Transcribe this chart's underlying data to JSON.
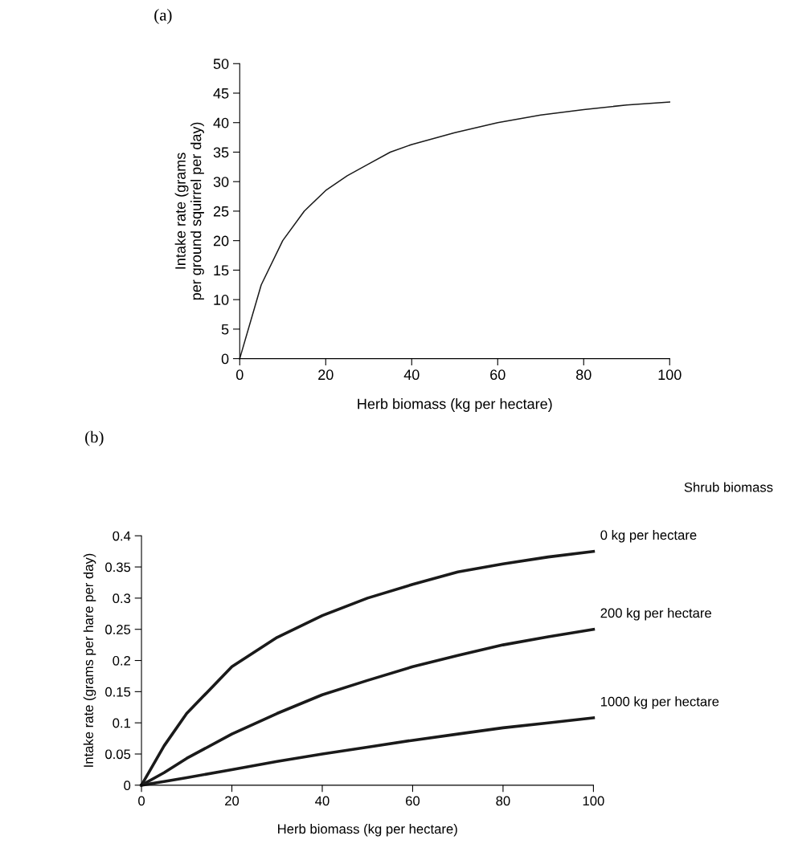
{
  "chart_data": [
    {
      "type": "line",
      "title": "(a)",
      "xlabel": "Herb biomass (kg per hectare)",
      "ylabel": "Intake rate (grams\nper ground squirrel per day)",
      "xlim": [
        0,
        100
      ],
      "xticks": [
        0,
        20,
        40,
        60,
        80,
        100
      ],
      "ylim": [
        0,
        50
      ],
      "yticks": [
        0,
        5,
        10,
        15,
        20,
        25,
        30,
        35,
        40,
        45,
        50
      ],
      "grid": false,
      "marker": "none",
      "line_style": "solid",
      "x": [
        0,
        5,
        10,
        15,
        20,
        25,
        30,
        35,
        40,
        50,
        60,
        70,
        80,
        90,
        100
      ],
      "series": [
        {
          "color": "#1a1a1a",
          "values": [
            0,
            12.5,
            20,
            25,
            28.5,
            31,
            33,
            35,
            36.3,
            38.3,
            40,
            41.3,
            42.2,
            43,
            43.5
          ]
        }
      ]
    },
    {
      "type": "line",
      "title": "(b)",
      "xlabel": "Herb biomass (kg per hectare)",
      "ylabel": "Intake rate (grams per hare per day)",
      "legend_title": "Shrub biomass",
      "xlim": [
        0,
        100
      ],
      "xticks": [
        0,
        20,
        40,
        60,
        80,
        100
      ],
      "ylim": [
        0,
        0.4
      ],
      "yticks": [
        {
          "value": 0,
          "label": "0"
        },
        {
          "value": 0.05,
          "label": "0.05"
        },
        {
          "value": 0.1,
          "label": "0.1"
        },
        {
          "value": 0.15,
          "label": "0.15"
        },
        {
          "value": 0.2,
          "label": "0.2"
        },
        {
          "value": 0.25,
          "label": "0.25"
        },
        {
          "value": 0.3,
          "label": "0.3"
        },
        {
          "value": 0.35,
          "label": "0.35"
        },
        {
          "value": 0.4,
          "label": "0.4"
        }
      ],
      "grid": false,
      "marker": "none",
      "line_style": "solid",
      "x": [
        0,
        5,
        10,
        20,
        30,
        40,
        50,
        60,
        70,
        80,
        90,
        100
      ],
      "series": [
        {
          "name": "0 kg per hectare",
          "color": "#1a1a1a",
          "values": [
            0,
            0.063,
            0.115,
            0.19,
            0.237,
            0.272,
            0.3,
            0.322,
            0.342,
            0.355,
            0.366,
            0.375
          ]
        },
        {
          "name": "200 kg per hectare",
          "color": "#1a1a1a",
          "values": [
            0,
            0.02,
            0.043,
            0.082,
            0.115,
            0.145,
            0.168,
            0.19,
            0.208,
            0.225,
            0.238,
            0.25
          ]
        },
        {
          "name": "1000 kg per hectare",
          "color": "#1a1a1a",
          "values": [
            0,
            0.006,
            0.012,
            0.025,
            0.038,
            0.05,
            0.061,
            0.072,
            0.082,
            0.092,
            0.1,
            0.108
          ]
        }
      ]
    }
  ]
}
